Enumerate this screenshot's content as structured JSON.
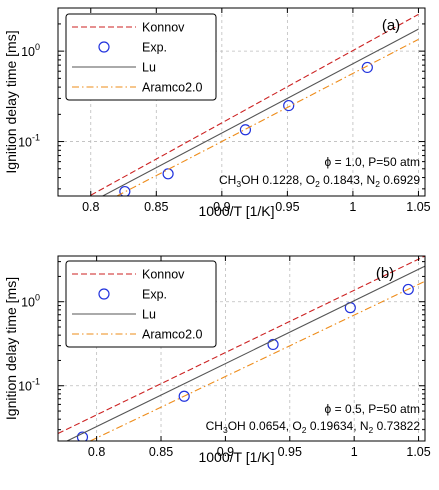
{
  "chart_data": [
    {
      "type": "line",
      "panel_label": "(a)",
      "xlabel": "1000/T [1/K]",
      "ylabel": "Ignition delay time [ms]",
      "xlim": [
        0.775,
        1.055
      ],
      "ylim": [
        0.025,
        3.0
      ],
      "yscale": "log",
      "grid": true,
      "legend_position": "top-left",
      "x_ticks": [
        "0.8",
        "0.85",
        "0.9",
        "0.95",
        "1",
        "1.05"
      ],
      "y_ticks": [
        "10",
        "10"
      ],
      "y_tick_exponents": [
        "-1",
        "0"
      ],
      "annotation_line1": "ϕ = 1.0, P=50 atm",
      "annotation_line2_parts": [
        "CH",
        "3",
        "OH 0.1228, O",
        "2",
        " 0.1843, N",
        "2",
        " 0.6929"
      ],
      "series": [
        {
          "name": "Konnov",
          "style": "dashed",
          "color": "#cc2222",
          "x": [
            0.8,
            1.05
          ],
          "y": [
            0.0255,
            2.55
          ]
        },
        {
          "name": "Exp.",
          "style": "markers",
          "color": "#2233dd",
          "x": [
            0.826,
            0.859,
            0.918,
            0.951,
            1.011
          ],
          "y": [
            0.028,
            0.044,
            0.135,
            0.25,
            0.66
          ]
        },
        {
          "name": "Lu",
          "style": "solid",
          "color": "#555555",
          "x": [
            0.8,
            1.05
          ],
          "y": [
            0.0213,
            1.75
          ]
        },
        {
          "name": "Aramco2.0",
          "style": "dashdot",
          "color": "#ee8c1a",
          "x": [
            0.82,
            1.05
          ],
          "y": [
            0.025,
            1.35
          ]
        }
      ]
    },
    {
      "type": "line",
      "panel_label": "(b)",
      "xlabel": "1000/T [1/K]",
      "ylabel": "Ignition delay time [ms]",
      "xlim": [
        0.77,
        1.055
      ],
      "ylim": [
        0.022,
        3.5
      ],
      "yscale": "log",
      "grid": true,
      "legend_position": "top-left",
      "x_ticks": [
        "0.8",
        "0.85",
        "0.9",
        "0.95",
        "1",
        "1.05"
      ],
      "y_ticks": [
        "10",
        "10"
      ],
      "y_tick_exponents": [
        "-1",
        "0"
      ],
      "annotation_line1": "ϕ = 0.5, P=50 atm",
      "annotation_line2_parts": [
        "CH",
        "3",
        "OH 0.0654, O",
        "2",
        " 0.19634, N",
        "2",
        " 0.73822"
      ],
      "series": [
        {
          "name": "Konnov",
          "style": "dashed",
          "color": "#cc2222",
          "x": [
            0.77,
            1.055
          ],
          "y": [
            0.027,
            3.5
          ]
        },
        {
          "name": "Exp.",
          "style": "markers",
          "color": "#2233dd",
          "x": [
            0.789,
            0.868,
            0.937,
            0.997,
            1.042
          ],
          "y": [
            0.0245,
            0.075,
            0.31,
            0.85,
            1.4
          ]
        },
        {
          "name": "Lu",
          "style": "solid",
          "color": "#555555",
          "x": [
            0.777,
            1.055
          ],
          "y": [
            0.022,
            2.65
          ]
        },
        {
          "name": "Aramco2.0",
          "style": "dashdot",
          "color": "#ee8c1a",
          "x": [
            0.795,
            1.055
          ],
          "y": [
            0.022,
            1.75
          ]
        }
      ]
    }
  ]
}
